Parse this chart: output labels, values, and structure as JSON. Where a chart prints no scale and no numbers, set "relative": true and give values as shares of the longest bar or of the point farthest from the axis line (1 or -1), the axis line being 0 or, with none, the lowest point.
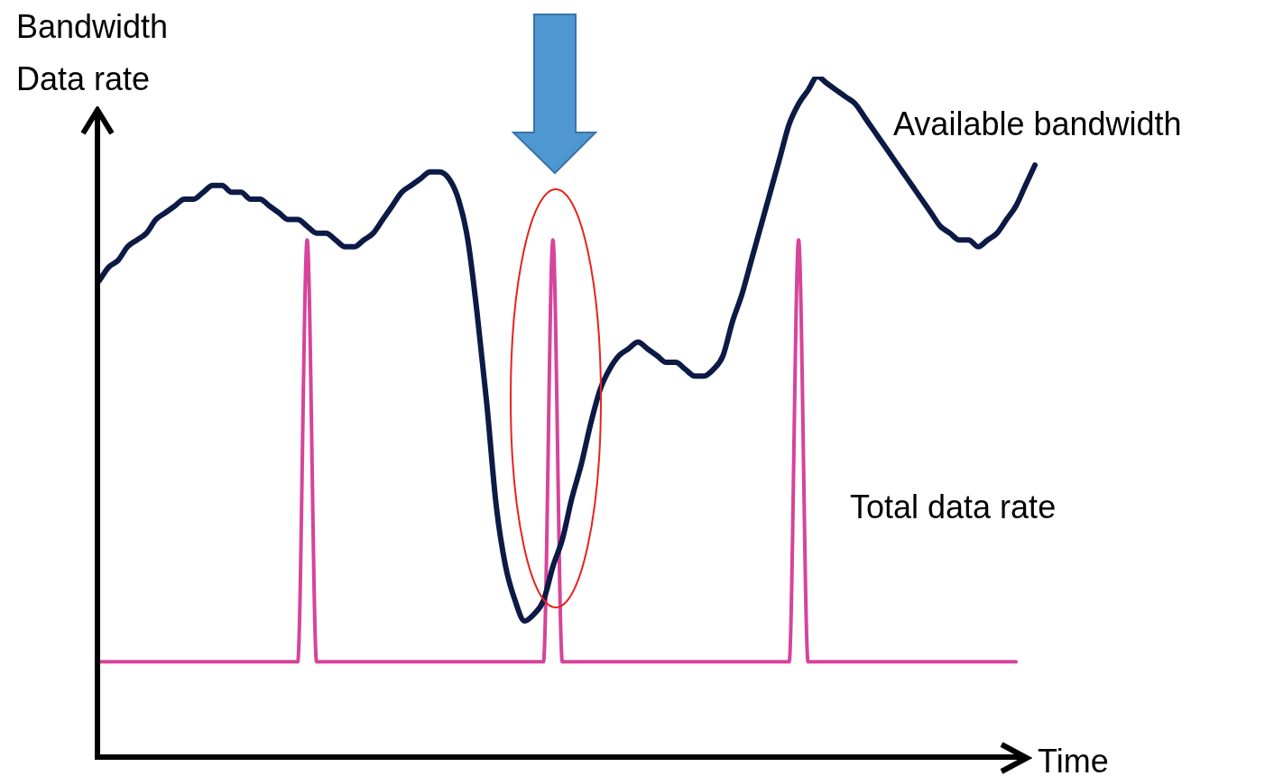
{
  "chart_data": {
    "type": "line",
    "relative": true,
    "xlabel": "Time",
    "ylabel": "Bandwidth\nData rate",
    "legend": false,
    "marker": "none",
    "line_style": "solid",
    "categories": [
      null,
      null,
      null,
      null,
      null,
      null,
      null,
      null,
      null,
      null,
      null,
      null,
      null,
      null,
      null,
      null,
      null,
      null,
      null,
      null,
      null,
      null,
      null,
      null,
      null,
      null,
      null,
      null,
      null,
      null,
      null,
      null,
      null,
      null,
      null,
      null,
      null,
      null,
      null,
      null,
      null,
      null,
      null,
      null,
      null,
      null,
      null,
      null,
      null,
      null,
      null,
      null,
      null,
      null,
      null,
      null,
      null,
      null,
      null,
      null,
      null,
      null,
      null,
      null,
      null,
      null,
      null,
      null,
      null,
      null,
      null,
      null,
      null,
      null,
      null,
      null,
      null,
      null,
      null,
      null,
      null,
      null,
      null,
      null,
      null,
      null,
      null,
      null,
      null,
      null,
      null,
      null,
      null,
      null,
      null,
      null,
      null,
      null,
      null,
      null
    ],
    "series": [
      {
        "name": "Available bandwidth",
        "color": "#0c1a45",
        "values": [
          0.7,
          0.72,
          0.73,
          0.75,
          0.76,
          0.77,
          0.79,
          0.8,
          0.81,
          0.82,
          0.82,
          0.83,
          0.84,
          0.84,
          0.83,
          0.83,
          0.82,
          0.82,
          0.81,
          0.8,
          0.79,
          0.79,
          0.78,
          0.77,
          0.77,
          0.76,
          0.75,
          0.75,
          0.76,
          0.77,
          0.79,
          0.81,
          0.83,
          0.84,
          0.85,
          0.86,
          0.86,
          0.85,
          0.82,
          0.76,
          0.65,
          0.52,
          0.37,
          0.28,
          0.23,
          0.2,
          0.21,
          0.23,
          0.28,
          0.32,
          0.38,
          0.43,
          0.49,
          0.54,
          0.57,
          0.59,
          0.6,
          0.61,
          0.6,
          0.59,
          0.58,
          0.58,
          0.57,
          0.56,
          0.56,
          0.57,
          0.59,
          0.64,
          0.68,
          0.73,
          0.78,
          0.83,
          0.88,
          0.93,
          0.96,
          0.98,
          1.0,
          0.99,
          0.98,
          0.97,
          0.96,
          0.94,
          0.92,
          0.9,
          0.88,
          0.86,
          0.84,
          0.82,
          0.8,
          0.78,
          0.77,
          0.76,
          0.76,
          0.75,
          0.76,
          0.77,
          0.79,
          0.81,
          0.84,
          0.87
        ]
      },
      {
        "name": "Total data rate",
        "color": "#d6449b",
        "values": [
          0.14,
          0.14,
          0.14,
          0.14,
          0.14,
          0.14,
          0.14,
          0.14,
          0.14,
          0.14,
          0.14,
          0.14,
          0.14,
          0.14,
          0.14,
          0.14,
          0.14,
          0.14,
          0.14,
          0.14,
          0.14,
          0.14,
          0.76,
          0.14,
          0.14,
          0.14,
          0.14,
          0.14,
          0.14,
          0.14,
          0.14,
          0.14,
          0.14,
          0.14,
          0.14,
          0.14,
          0.14,
          0.14,
          0.14,
          0.14,
          0.14,
          0.14,
          0.14,
          0.14,
          0.14,
          0.14,
          0.14,
          0.14,
          0.76,
          0.14,
          0.14,
          0.14,
          0.14,
          0.14,
          0.14,
          0.14,
          0.14,
          0.14,
          0.14,
          0.14,
          0.14,
          0.14,
          0.14,
          0.14,
          0.14,
          0.14,
          0.14,
          0.14,
          0.14,
          0.14,
          0.14,
          0.14,
          0.14,
          0.14,
          0.76,
          0.14,
          0.14,
          0.14,
          0.14,
          0.14,
          0.14,
          0.14,
          0.14,
          0.14,
          0.14,
          0.14,
          0.14,
          0.14,
          0.14,
          0.14,
          0.14,
          0.14,
          0.14,
          0.14,
          0.14,
          0.14,
          0.14,
          0.14,
          null,
          null
        ]
      }
    ]
  }
}
